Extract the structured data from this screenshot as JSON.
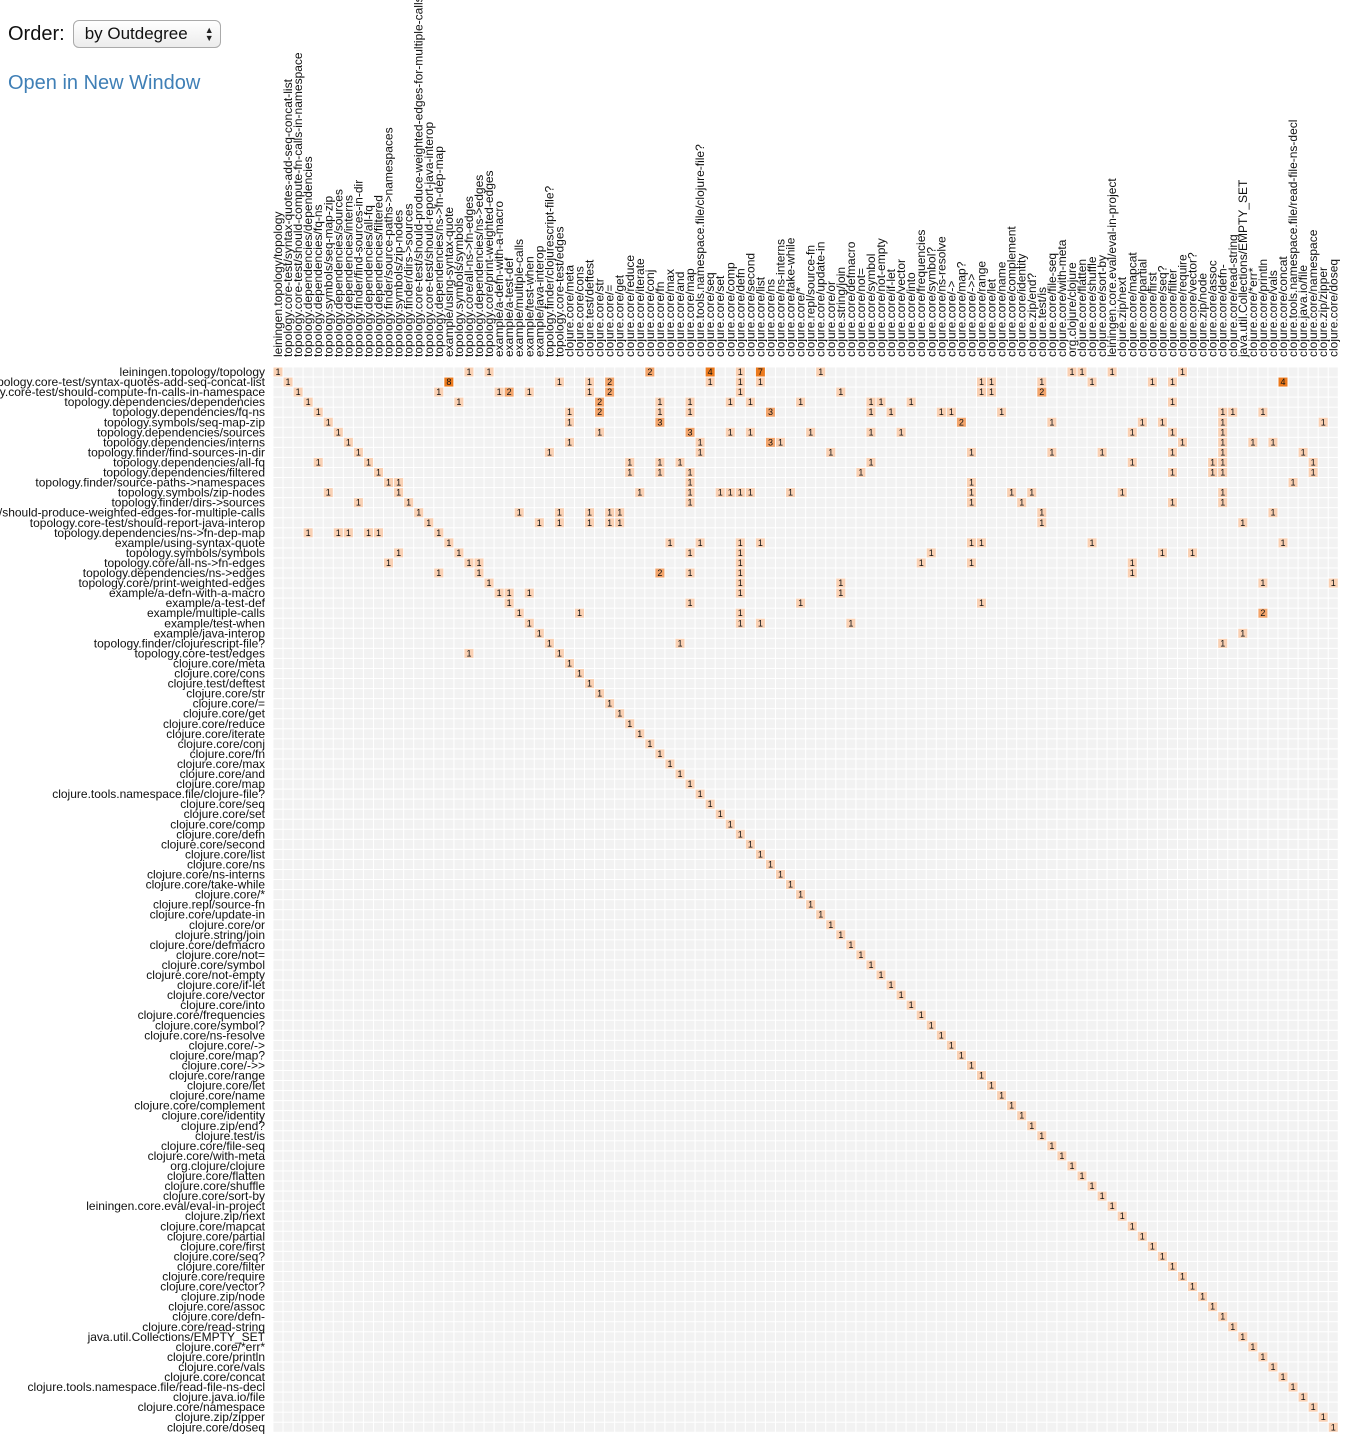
{
  "controls": {
    "order_label": "Order:",
    "order_value": "by Outdegree",
    "open_link": "Open in New Window"
  },
  "colors": {
    "background_cell": "#f2f2f2",
    "low": "#f9d0b3",
    "mid": "#f3a56c",
    "high": "#ec7a1d"
  },
  "chart_data": {
    "type": "heatmap",
    "title": "",
    "row_labels": [
      "leiningen.topology/topology",
      "topology.core-test/syntax-quotes-add-seq-concat-list",
      "topology.core-test/should-compute-fn-calls-in-namespace",
      "topology.dependencies/dependencies",
      "topology.dependencies/fq-ns",
      "topology.symbols/seq-map-zip",
      "topology.dependencies/sources",
      "topology.dependencies/interns",
      "topology.finder/find-sources-in-dir",
      "topology.dependencies/all-fq",
      "topology.dependencies/filtered",
      "topology.finder/source-paths->namespaces",
      "topology.symbols/zip-nodes",
      "topology.finder/dirs->sources",
      "topology.core-test/should-produce-weighted-edges-for-multiple-calls",
      "topology.core-test/should-report-java-interop",
      "topology.dependencies/ns->fn-dep-map",
      "example/using-syntax-quote",
      "topology.symbols/symbols",
      "topology.core/all-ns->fn-edges",
      "topology.dependencies/ns->edges",
      "topology.core/print-weighted-edges",
      "example/a-defn-with-a-macro",
      "example/a-test-def",
      "example/multiple-calls",
      "example/test-when",
      "example/java-interop",
      "topology.finder/clojurescript-file?",
      "topology.core-test/edges",
      "clojure.core/meta",
      "clojure.core/cons",
      "clojure.test/deftest",
      "clojure.core/str",
      "clojure.core/=",
      "clojure.core/get",
      "clojure.core/reduce",
      "clojure.core/iterate",
      "clojure.core/conj",
      "clojure.core/fn",
      "clojure.core/max",
      "clojure.core/and",
      "clojure.core/map",
      "clojure.tools.namespace.file/clojure-file?",
      "clojure.core/seq",
      "clojure.core/set",
      "clojure.core/comp",
      "clojure.core/defn",
      "clojure.core/second",
      "clojure.core/list",
      "clojure.core/ns",
      "clojure.core/ns-interns",
      "clojure.core/take-while",
      "clojure.core/*",
      "clojure.repl/source-fn",
      "clojure.core/update-in",
      "clojure.core/or",
      "clojure.string/join",
      "clojure.core/defmacro",
      "clojure.core/not=",
      "clojure.core/symbol",
      "clojure.core/not-empty",
      "clojure.core/if-let",
      "clojure.core/vector",
      "clojure.core/into",
      "clojure.core/frequencies",
      "clojure.core/symbol?",
      "clojure.core/ns-resolve",
      "clojure.core/->",
      "clojure.core/map?",
      "clojure.core/->>",
      "clojure.core/range",
      "clojure.core/let",
      "clojure.core/name",
      "clojure.core/complement",
      "clojure.core/identity",
      "clojure.zip/end?",
      "clojure.test/is",
      "clojure.core/file-seq",
      "clojure.core/with-meta",
      "org.clojure/clojure",
      "clojure.core/flatten",
      "clojure.core/shuffle",
      "clojure.core/sort-by",
      "leiningen.core.eval/eval-in-project",
      "clojure.zip/next",
      "clojure.core/mapcat",
      "clojure.core/partial",
      "clojure.core/first",
      "clojure.core/seq?",
      "clojure.core/filter",
      "clojure.core/require",
      "clojure.core/vector?",
      "clojure.zip/node",
      "clojure.core/assoc",
      "clojure.core/defn-",
      "clojure.core/read-string",
      "java.util.Collections/EMPTY_SET",
      "clojure.core/*err*",
      "clojure.core/println",
      "clojure.core/vals",
      "clojure.core/concat",
      "clojure.tools.namespace.file/read-file-ns-decl",
      "clojure.java.io/file",
      "clojure.core/namespace",
      "clojure.zip/zipper",
      "clojure.core/doseq"
    ],
    "col_labels": [
      "leiningen.topology/topology",
      "topology.core-test/syntax-quotes-add-seq-concat-list",
      "topology.core-test/should-compute-fn-calls-in-namespace",
      "topology.dependencies/dependencies",
      "topology.dependencies/fq-ns",
      "topology.symbols/seq-map-zip",
      "topology.dependencies/sources",
      "topology.dependencies/interns",
      "topology.finder/find-sources-in-dir",
      "topology.dependencies/all-fq",
      "topology.dependencies/filtered",
      "topology.finder/source-paths->namespaces",
      "topology.symbols/zip-nodes",
      "topology.finder/dirs->sources",
      "topology.core-test/should-produce-weighted-edges-for-multiple-calls",
      "topology.core-test/should-report-java-interop",
      "topology.dependencies/ns->fn-dep-map",
      "example/using-syntax-quote",
      "topology.symbols/symbols",
      "topology.core/all-ns->fn-edges",
      "topology.dependencies/ns->edges",
      "topology.core/print-weighted-edges",
      "example/a-defn-with-a-macro",
      "example/a-test-def",
      "example/multiple-calls",
      "example/test-when",
      "example/java-interop",
      "topology.finder/clojurescript-file?",
      "topology.core-test/edges",
      "clojure.core/meta",
      "clojure.core/cons",
      "clojure.test/deftest",
      "clojure.core/str",
      "clojure.core/=",
      "clojure.core/get",
      "clojure.core/reduce",
      "clojure.core/iterate",
      "clojure.core/conj",
      "clojure.core/fn",
      "clojure.core/max",
      "clojure.core/and",
      "clojure.core/map",
      "clojure.tools.namespace.file/clojure-file?",
      "clojure.core/seq",
      "clojure.core/set",
      "clojure.core/comp",
      "clojure.core/defn",
      "clojure.core/second",
      "clojure.core/list",
      "clojure.core/ns",
      "clojure.core/ns-interns",
      "clojure.core/take-while",
      "clojure.core/*",
      "clojure.repl/source-fn",
      "clojure.core/update-in",
      "clojure.core/or",
      "clojure.string/join",
      "clojure.core/defmacro",
      "clojure.core/not=",
      "clojure.core/symbol",
      "clojure.core/not-empty",
      "clojure.core/if-let",
      "clojure.core/vector",
      "clojure.core/into",
      "clojure.core/frequencies",
      "clojure.core/symbol?",
      "clojure.core/ns-resolve",
      "clojure.core/->",
      "clojure.core/map?",
      "clojure.core/->>",
      "clojure.core/range",
      "clojure.core/let",
      "clojure.core/name",
      "clojure.core/complement",
      "clojure.core/identity",
      "clojure.zip/end?",
      "clojure.test/is",
      "clojure.core/file-seq",
      "clojure.core/with-meta",
      "org.clojure/clojure",
      "clojure.core/flatten",
      "clojure.core/shuffle",
      "clojure.core/sort-by",
      "leiningen.core.eval/eval-in-project",
      "clojure.zip/next",
      "clojure.core/mapcat",
      "clojure.core/partial",
      "clojure.core/first",
      "clojure.core/seq?",
      "clojure.core/filter",
      "clojure.core/require",
      "clojure.core/vector?",
      "clojure.zip/node",
      "clojure.core/assoc",
      "clojure.core/defn-",
      "clojure.core/read-string",
      "java.util.Collections/EMPTY_SET",
      "clojure.core/*err*",
      "clojure.core/println",
      "clojure.core/vals",
      "clojure.core/concat",
      "clojure.tools.namespace.file/read-file-ns-decl",
      "clojure.java.io/file",
      "clojure.core/namespace",
      "clojure.zip/zipper",
      "clojure.core/doseq"
    ],
    "diagonal_value": 1,
    "cells": [
      [
        0,
        19,
        1
      ],
      [
        0,
        21,
        1
      ],
      [
        0,
        37,
        2
      ],
      [
        0,
        43,
        4
      ],
      [
        0,
        46,
        1
      ],
      [
        0,
        48,
        7
      ],
      [
        0,
        54,
        1
      ],
      [
        0,
        79,
        1
      ],
      [
        0,
        80,
        1
      ],
      [
        0,
        83,
        1
      ],
      [
        0,
        90,
        1
      ],
      [
        1,
        17,
        8
      ],
      [
        1,
        28,
        1
      ],
      [
        1,
        31,
        1
      ],
      [
        1,
        33,
        2
      ],
      [
        1,
        43,
        1
      ],
      [
        1,
        46,
        1
      ],
      [
        1,
        48,
        1
      ],
      [
        1,
        70,
        1
      ],
      [
        1,
        71,
        1
      ],
      [
        1,
        76,
        1
      ],
      [
        1,
        81,
        1
      ],
      [
        1,
        87,
        1
      ],
      [
        1,
        89,
        1
      ],
      [
        1,
        100,
        4
      ],
      [
        2,
        16,
        1
      ],
      [
        2,
        22,
        1
      ],
      [
        2,
        23,
        2
      ],
      [
        2,
        25,
        1
      ],
      [
        2,
        31,
        1
      ],
      [
        2,
        33,
        2
      ],
      [
        2,
        46,
        1
      ],
      [
        2,
        56,
        1
      ],
      [
        2,
        70,
        1
      ],
      [
        2,
        71,
        1
      ],
      [
        2,
        76,
        2
      ],
      [
        3,
        18,
        1
      ],
      [
        3,
        32,
        2
      ],
      [
        3,
        38,
        1
      ],
      [
        3,
        41,
        1
      ],
      [
        3,
        45,
        1
      ],
      [
        3,
        47,
        1
      ],
      [
        3,
        52,
        1
      ],
      [
        3,
        59,
        1
      ],
      [
        3,
        60,
        1
      ],
      [
        3,
        63,
        1
      ],
      [
        3,
        89,
        1
      ],
      [
        4,
        29,
        1
      ],
      [
        4,
        32,
        2
      ],
      [
        4,
        38,
        1
      ],
      [
        4,
        41,
        1
      ],
      [
        4,
        49,
        3
      ],
      [
        4,
        59,
        1
      ],
      [
        4,
        61,
        1
      ],
      [
        4,
        66,
        1
      ],
      [
        4,
        67,
        1
      ],
      [
        4,
        72,
        1
      ],
      [
        4,
        94,
        1
      ],
      [
        4,
        95,
        1
      ],
      [
        4,
        98,
        1
      ],
      [
        5,
        29,
        1
      ],
      [
        5,
        38,
        3
      ],
      [
        5,
        68,
        2
      ],
      [
        5,
        77,
        1
      ],
      [
        5,
        86,
        1
      ],
      [
        5,
        88,
        1
      ],
      [
        5,
        94,
        1
      ],
      [
        5,
        104,
        1
      ],
      [
        6,
        32,
        1
      ],
      [
        6,
        41,
        3
      ],
      [
        6,
        45,
        1
      ],
      [
        6,
        47,
        1
      ],
      [
        6,
        53,
        1
      ],
      [
        6,
        59,
        1
      ],
      [
        6,
        62,
        1
      ],
      [
        6,
        85,
        1
      ],
      [
        6,
        89,
        1
      ],
      [
        6,
        94,
        1
      ],
      [
        7,
        29,
        1
      ],
      [
        7,
        42,
        1
      ],
      [
        7,
        49,
        3
      ],
      [
        7,
        50,
        1
      ],
      [
        7,
        90,
        1
      ],
      [
        7,
        94,
        1
      ],
      [
        7,
        97,
        1
      ],
      [
        7,
        99,
        1
      ],
      [
        8,
        27,
        1
      ],
      [
        8,
        42,
        1
      ],
      [
        8,
        55,
        1
      ],
      [
        8,
        69,
        1
      ],
      [
        8,
        77,
        1
      ],
      [
        8,
        82,
        1
      ],
      [
        8,
        89,
        1
      ],
      [
        8,
        94,
        1
      ],
      [
        8,
        102,
        1
      ],
      [
        9,
        4,
        1
      ],
      [
        9,
        35,
        1
      ],
      [
        9,
        38,
        1
      ],
      [
        9,
        40,
        1
      ],
      [
        9,
        59,
        1
      ],
      [
        9,
        85,
        1
      ],
      [
        9,
        93,
        1
      ],
      [
        9,
        94,
        1
      ],
      [
        9,
        103,
        1
      ],
      [
        10,
        35,
        1
      ],
      [
        10,
        38,
        1
      ],
      [
        10,
        41,
        1
      ],
      [
        10,
        58,
        1
      ],
      [
        10,
        89,
        1
      ],
      [
        10,
        93,
        1
      ],
      [
        10,
        94,
        1
      ],
      [
        10,
        103,
        1
      ],
      [
        11,
        12,
        1
      ],
      [
        11,
        41,
        1
      ],
      [
        11,
        69,
        1
      ],
      [
        11,
        101,
        1
      ],
      [
        12,
        5,
        1
      ],
      [
        12,
        36,
        1
      ],
      [
        12,
        41,
        1
      ],
      [
        12,
        44,
        1
      ],
      [
        12,
        45,
        1
      ],
      [
        12,
        46,
        1
      ],
      [
        12,
        47,
        1
      ],
      [
        12,
        51,
        1
      ],
      [
        12,
        69,
        1
      ],
      [
        12,
        73,
        1
      ],
      [
        12,
        75,
        1
      ],
      [
        12,
        84,
        1
      ],
      [
        12,
        94,
        1
      ],
      [
        13,
        8,
        1
      ],
      [
        13,
        41,
        1
      ],
      [
        13,
        69,
        1
      ],
      [
        13,
        74,
        1
      ],
      [
        13,
        89,
        1
      ],
      [
        13,
        94,
        1
      ],
      [
        14,
        24,
        1
      ],
      [
        14,
        28,
        1
      ],
      [
        14,
        31,
        1
      ],
      [
        14,
        33,
        1
      ],
      [
        14,
        34,
        1
      ],
      [
        14,
        76,
        1
      ],
      [
        14,
        99,
        1
      ],
      [
        15,
        26,
        1
      ],
      [
        15,
        28,
        1
      ],
      [
        15,
        31,
        1
      ],
      [
        15,
        33,
        1
      ],
      [
        15,
        34,
        1
      ],
      [
        15,
        76,
        1
      ],
      [
        15,
        96,
        1
      ],
      [
        16,
        3,
        1
      ],
      [
        16,
        6,
        1
      ],
      [
        16,
        7,
        1
      ],
      [
        16,
        9,
        1
      ],
      [
        16,
        10,
        1
      ],
      [
        17,
        39,
        1
      ],
      [
        17,
        42,
        1
      ],
      [
        17,
        46,
        1
      ],
      [
        17,
        48,
        1
      ],
      [
        17,
        69,
        1
      ],
      [
        17,
        70,
        1
      ],
      [
        17,
        81,
        1
      ],
      [
        17,
        100,
        1
      ],
      [
        18,
        12,
        1
      ],
      [
        18,
        41,
        1
      ],
      [
        18,
        46,
        1
      ],
      [
        18,
        65,
        1
      ],
      [
        18,
        88,
        1
      ],
      [
        18,
        91,
        1
      ],
      [
        19,
        11,
        1
      ],
      [
        19,
        20,
        1
      ],
      [
        19,
        46,
        1
      ],
      [
        19,
        64,
        1
      ],
      [
        19,
        69,
        1
      ],
      [
        19,
        85,
        1
      ],
      [
        20,
        16,
        1
      ],
      [
        20,
        38,
        2
      ],
      [
        20,
        41,
        1
      ],
      [
        20,
        46,
        1
      ],
      [
        20,
        85,
        1
      ],
      [
        21,
        46,
        1
      ],
      [
        21,
        56,
        1
      ],
      [
        21,
        98,
        1
      ],
      [
        21,
        105,
        1
      ],
      [
        22,
        23,
        1
      ],
      [
        22,
        25,
        1
      ],
      [
        22,
        46,
        1
      ],
      [
        22,
        56,
        1
      ],
      [
        23,
        41,
        1
      ],
      [
        23,
        52,
        1
      ],
      [
        23,
        70,
        1
      ],
      [
        24,
        30,
        1
      ],
      [
        24,
        46,
        1
      ],
      [
        24,
        98,
        2
      ],
      [
        25,
        46,
        1
      ],
      [
        25,
        48,
        1
      ],
      [
        25,
        57,
        1
      ],
      [
        26,
        96,
        1
      ],
      [
        27,
        40,
        1
      ],
      [
        27,
        94,
        1
      ],
      [
        28,
        19,
        1
      ]
    ]
  }
}
